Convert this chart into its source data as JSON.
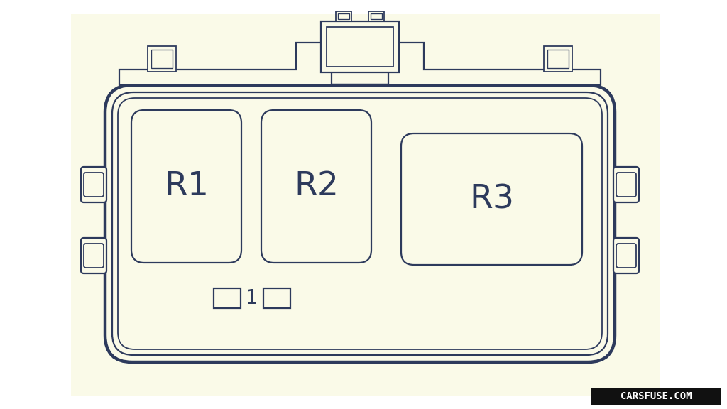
{
  "bg_color": "#fafae8",
  "line_color": "#2d3a5c",
  "watermark_text": "CARSFUSE.COM",
  "watermark_bg": "#111111",
  "watermark_fg": "#ffffff",
  "relay_labels": [
    "R1",
    "R2",
    "R3"
  ],
  "fuse_label": "1",
  "line_width": 1.6
}
